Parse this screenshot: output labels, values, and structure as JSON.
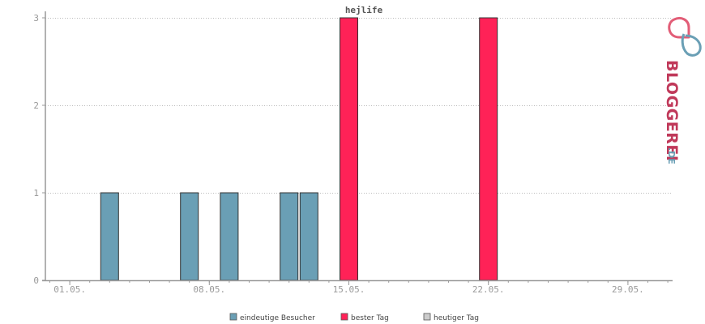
{
  "chart_data": {
    "type": "bar",
    "title": "hejlife",
    "xlabel": "",
    "ylabel": "",
    "ylim": [
      0,
      3
    ],
    "y_ticks": [
      "0",
      "1",
      "2",
      "3"
    ],
    "x_tick_labels": [
      "01.05.",
      "08.05.",
      "15.05.",
      "22.05.",
      "29.05."
    ],
    "x_tick_days": [
      1,
      8,
      15,
      22,
      29
    ],
    "x_range_days": [
      0,
      32
    ],
    "grid": "horizontal-dotted",
    "legend_placement": "bottom-center",
    "series": [
      {
        "name": "eindeutige Besucher",
        "color": "#6a9fb5",
        "points": [
          {
            "day": 3,
            "value": 1
          },
          {
            "day": 7,
            "value": 1
          },
          {
            "day": 9,
            "value": 1
          },
          {
            "day": 12,
            "value": 1
          },
          {
            "day": 13,
            "value": 1
          }
        ]
      },
      {
        "name": "bester Tag",
        "color": "#ff2257",
        "points": [
          {
            "day": 15,
            "value": 3
          },
          {
            "day": 22,
            "value": 3
          }
        ]
      },
      {
        "name": "heutiger Tag",
        "color": "#cccccc",
        "points": []
      }
    ]
  },
  "brand": {
    "name": "BLOGGEREI",
    "suffix": ".DE",
    "logo_icon": "bloggerei-logo-icon",
    "colors": {
      "primary": "#c0395a",
      "secondary": "#6a9fb5"
    }
  }
}
